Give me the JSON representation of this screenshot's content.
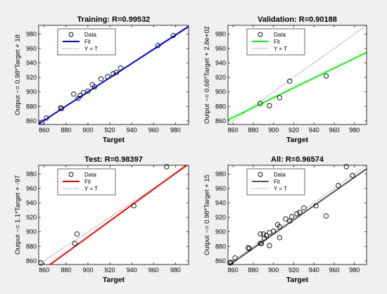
{
  "chart_data": [
    {
      "type": "scatter",
      "title": "Training: R=0.99532",
      "xlabel": "Target",
      "ylabel": "Output ~= 0.98*Target + 18",
      "xlim": [
        855,
        992
      ],
      "ylim": [
        855,
        992
      ],
      "xticks": [
        860,
        880,
        900,
        920,
        940,
        960,
        980
      ],
      "yticks": [
        860,
        880,
        900,
        920,
        940,
        960,
        980
      ],
      "fit_color": "#0000ff",
      "fit": {
        "slope": 0.98,
        "intercept": 18
      },
      "legend": [
        "Data",
        "Fit",
        "Y = T"
      ],
      "legend_position": "top-left",
      "grid": false,
      "points": [
        [
          858,
          858
        ],
        [
          862,
          864
        ],
        [
          875,
          878
        ],
        [
          876,
          877
        ],
        [
          887,
          897
        ],
        [
          891,
          891
        ],
        [
          893,
          895
        ],
        [
          896,
          899
        ],
        [
          900,
          901
        ],
        [
          904,
          910
        ],
        [
          906,
          907
        ],
        [
          912,
          918
        ],
        [
          918,
          921
        ],
        [
          923,
          925
        ],
        [
          926,
          927
        ],
        [
          930,
          933
        ],
        [
          964,
          964
        ],
        [
          978,
          978
        ]
      ]
    },
    {
      "type": "scatter",
      "title": "Validation: R=0.90188",
      "xlabel": "Target",
      "ylabel": "Output ~= 0.68*Target + 2.8e+02",
      "xlim": [
        855,
        992
      ],
      "ylim": [
        855,
        992
      ],
      "xticks": [
        860,
        880,
        900,
        920,
        940,
        960,
        980
      ],
      "yticks": [
        860,
        880,
        900,
        920,
        940,
        960,
        980
      ],
      "fit_color": "#00ff00",
      "fit": {
        "slope": 0.68,
        "intercept": 280
      },
      "legend": [
        "Data",
        "Fit",
        "Y = T"
      ],
      "legend_position": "top-left",
      "grid": false,
      "points": [
        [
          887,
          884
        ],
        [
          896,
          881
        ],
        [
          906,
          892
        ],
        [
          916,
          915
        ],
        [
          952,
          922
        ]
      ]
    },
    {
      "type": "scatter",
      "title": "Test: R=0.98397",
      "xlabel": "Target",
      "ylabel": "Output ~= 1.1*Target + -97",
      "xlim": [
        855,
        992
      ],
      "ylim": [
        855,
        992
      ],
      "xticks": [
        860,
        880,
        900,
        920,
        940,
        960,
        980
      ],
      "yticks": [
        860,
        880,
        900,
        920,
        940,
        960,
        980
      ],
      "fit_color": "#ff0000",
      "fit": {
        "slope": 1.1,
        "intercept": -97
      },
      "legend": [
        "Data",
        "Fit",
        "Y = T"
      ],
      "legend_position": "top-left",
      "grid": false,
      "points": [
        [
          857,
          857
        ],
        [
          888,
          884
        ],
        [
          890,
          897
        ],
        [
          942,
          936
        ],
        [
          972,
          990
        ]
      ]
    },
    {
      "type": "scatter",
      "title": "All: R=0.96574",
      "xlabel": "Target",
      "ylabel": "Output ~= 0.98*Target + 15",
      "xlim": [
        855,
        992
      ],
      "ylim": [
        855,
        992
      ],
      "xticks": [
        860,
        880,
        900,
        920,
        940,
        960,
        980
      ],
      "yticks": [
        860,
        880,
        900,
        920,
        940,
        960,
        980
      ],
      "fit_color": "#555555",
      "fit": {
        "slope": 0.98,
        "intercept": 15
      },
      "legend": [
        "Data",
        "Fit",
        "Y = T"
      ],
      "legend_position": "top-left",
      "grid": false,
      "points": [
        [
          857,
          857
        ],
        [
          858,
          858
        ],
        [
          862,
          864
        ],
        [
          875,
          878
        ],
        [
          876,
          877
        ],
        [
          887,
          884
        ],
        [
          887,
          897
        ],
        [
          888,
          884
        ],
        [
          890,
          897
        ],
        [
          891,
          891
        ],
        [
          893,
          895
        ],
        [
          896,
          881
        ],
        [
          896,
          899
        ],
        [
          900,
          901
        ],
        [
          904,
          910
        ],
        [
          906,
          892
        ],
        [
          906,
          907
        ],
        [
          912,
          918
        ],
        [
          916,
          915
        ],
        [
          918,
          921
        ],
        [
          923,
          925
        ],
        [
          926,
          927
        ],
        [
          930,
          933
        ],
        [
          942,
          936
        ],
        [
          952,
          922
        ],
        [
          964,
          964
        ],
        [
          972,
          990
        ],
        [
          978,
          978
        ]
      ]
    }
  ]
}
